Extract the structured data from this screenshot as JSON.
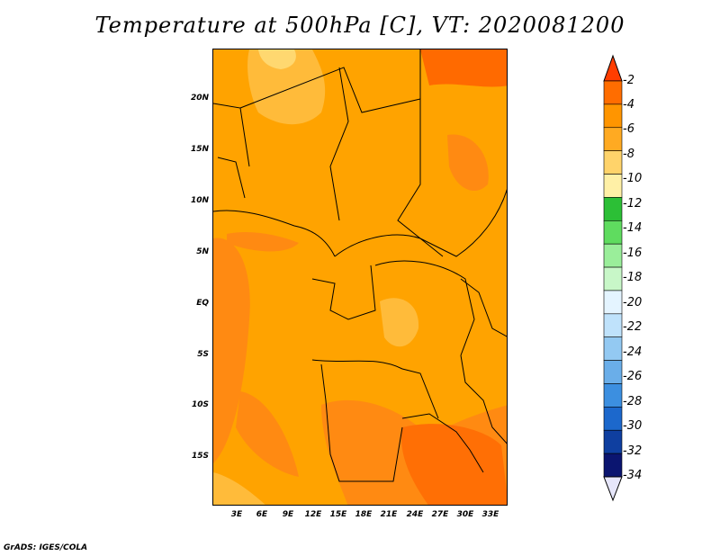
{
  "title": "Temperature at 500hPa [C], VT: 2020081200",
  "footer": "GrADS: IGES/COLA",
  "lat_labels": [
    "20N",
    "15N",
    "10N",
    "5N",
    "EQ",
    "5S",
    "10S",
    "15S"
  ],
  "lon_labels": [
    "3E",
    "6E",
    "9E",
    "12E",
    "15E",
    "18E",
    "21E",
    "24E",
    "27E",
    "30E",
    "33E"
  ],
  "colorbar": {
    "labels": [
      "-2",
      "-4",
      "-6",
      "-8",
      "-10",
      "-12",
      "-14",
      "-16",
      "-18",
      "-20",
      "-22",
      "-24",
      "-26",
      "-28",
      "-30",
      "-32",
      "-34"
    ],
    "colors": [
      "#ff6d00",
      "#ff9500",
      "#ffaa22",
      "#ffd36a",
      "#fff0a6",
      "#2cbf36",
      "#5fdc5f",
      "#9aee9a",
      "#c8f7c8",
      "#e4f4ff",
      "#bfe2fb",
      "#93c9f2",
      "#6aaee9",
      "#3c8fe0",
      "#1c68cc",
      "#0f3fa0",
      "#0b1570"
    ],
    "top_arrow_color": "#ff3d00",
    "bottom_arrow_color": "#e6e6fa"
  }
}
